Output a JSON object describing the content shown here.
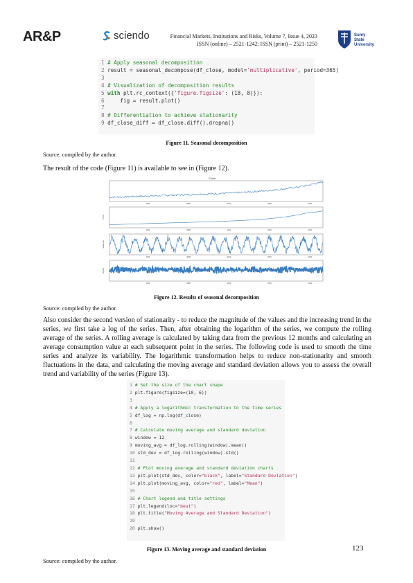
{
  "header": {
    "logo_arp": "AR&P",
    "sciendo": "sciendo",
    "journal_line1": "Financial Markets, Institutions and Risks, Volume 7, Issue 4, 2023",
    "journal_line2": "ISSN (online) – 2521-1242; ISSN (print) – 2521-1250",
    "university": "Sumy State University"
  },
  "code1": [
    [
      "1",
      "# Apply seasonal decomposition"
    ],
    [
      "2",
      "result = seasonal_decompose(df_close, model='multiplicative', period=365)"
    ],
    [
      "3",
      ""
    ],
    [
      "4",
      "# Visualization of decomposition results"
    ],
    [
      "5",
      "with plt.rc_context({'figure.figsize': (18, 8)}):"
    ],
    [
      "6",
      "    fig = result.plot()"
    ],
    [
      "7",
      ""
    ],
    [
      "8",
      "# Differentiation to achieve stationarity"
    ],
    [
      "9",
      "df_close_diff = df_close.diff().dropna()"
    ]
  ],
  "fig11_caption": "Figure 11. Seasonal decomposition",
  "source1": "Source: compiled by the author.",
  "para1": "The result of the code (Figure 11) is available to see in (Figure 12).",
  "fig12": {
    "title": "Close",
    "panel_labels": [
      "Trend",
      "Seasonal",
      "Resid"
    ],
    "x_ticks": [
      "2004",
      "2008",
      "2012",
      "2016",
      "2020"
    ]
  },
  "fig12_caption": "Figure 12. Results of seasonal decomposition",
  "source2": "Source: compiled by the author.",
  "para2": "Also consider the second version of stationarity - to reduce the magnitude of the values and the increasing trend in the series, we first take a log of the series. Then, after obtaining the logarithm of the series, we compute the rolling average of the series. A rolling average is calculated by taking data from the previous 12 months and calculating an average consumption value at each subsequent point in the series. The following code is used to smooth the time series and analyze its variability. The logarithmic transformation helps to reduce non-stationarity and smooth fluctuations in the data, and calculating the moving average and standard deviation allows you to assess the overall trend and variability of the series (Figure 13).",
  "code2": [
    [
      "1",
      "# Set the size of the chart shape"
    ],
    [
      "2",
      "plt.figure(figsize=(10, 6))"
    ],
    [
      "3",
      ""
    ],
    [
      "4",
      "# Apply a logarithmic transformation to the time series"
    ],
    [
      "5",
      "df_log = np.log(df_close)"
    ],
    [
      "6",
      ""
    ],
    [
      "7",
      "# Calculate moving average and standard deviation"
    ],
    [
      "8",
      "window = 12"
    ],
    [
      "9",
      "moving_avg = df_log.rolling(window).mean()"
    ],
    [
      "10",
      "std_dev = df_log.rolling(window).std()"
    ],
    [
      "11",
      ""
    ],
    [
      "12",
      "# Plot moving average and standard deviation charts"
    ],
    [
      "13",
      "plt.plot(std_dev, color=\"black\", label=\"Standard Deviation\")"
    ],
    [
      "14",
      "plt.plot(moving_avg, color=\"red\", label=\"Mean\")"
    ],
    [
      "15",
      ""
    ],
    [
      "16",
      "# Chart legend and title settings"
    ],
    [
      "17",
      "plt.legend(loc=\"best\")"
    ],
    [
      "18",
      "plt.title(\"Moving Average and Standard Deviation\")"
    ],
    [
      "19",
      ""
    ],
    [
      "20",
      "plt.show()"
    ]
  ],
  "fig13_caption": "Figure 13. Moving average and standard deviation",
  "source3": "Source: compiled by the author.",
  "page_number": "123",
  "colors": {
    "line": "#3a7dbf",
    "code_bg": "#f6f6f6",
    "comment": "#2a8a2a",
    "string": "#b03060"
  }
}
